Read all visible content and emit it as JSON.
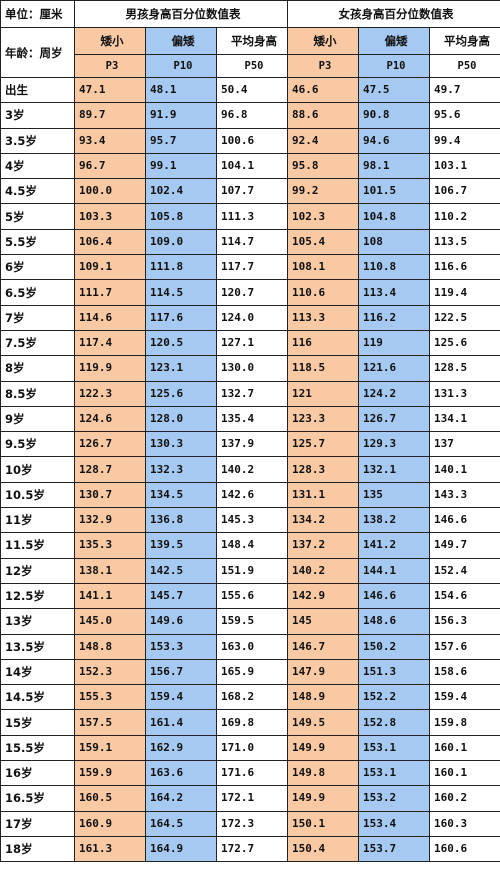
{
  "header": {
    "unit_label": "单位：厘米",
    "age_label": "年龄：周岁",
    "boys_title": "男孩身高百分位数值表",
    "girls_title": "女孩身高百分位数值表",
    "col_short": "矮小",
    "col_low": "偏矮",
    "col_avg": "平均身高",
    "p3": "P3",
    "p10": "P10",
    "p50": "P50"
  },
  "rows": [
    {
      "age": "出生",
      "b": [
        "47.1",
        "48.1",
        "50.4"
      ],
      "g": [
        "46.6",
        "47.5",
        "49.7"
      ]
    },
    {
      "age": "3岁",
      "b": [
        "89.7",
        "91.9",
        "96.8"
      ],
      "g": [
        "88.6",
        "90.8",
        "95.6"
      ]
    },
    {
      "age": "3.5岁",
      "b": [
        "93.4",
        "95.7",
        "100.6"
      ],
      "g": [
        "92.4",
        "94.6",
        "99.4"
      ]
    },
    {
      "age": "4岁",
      "b": [
        "96.7",
        "99.1",
        "104.1"
      ],
      "g": [
        "95.8",
        "98.1",
        "103.1"
      ]
    },
    {
      "age": "4.5岁",
      "b": [
        "100.0",
        "102.4",
        "107.7"
      ],
      "g": [
        "99.2",
        "101.5",
        "106.7"
      ]
    },
    {
      "age": "5岁",
      "b": [
        "103.3",
        "105.8",
        "111.3"
      ],
      "g": [
        "102.3",
        "104.8",
        "110.2"
      ]
    },
    {
      "age": "5.5岁",
      "b": [
        "106.4",
        "109.0",
        "114.7"
      ],
      "g": [
        "105.4",
        "108",
        "113.5"
      ]
    },
    {
      "age": "6岁",
      "b": [
        "109.1",
        "111.8",
        "117.7"
      ],
      "g": [
        "108.1",
        "110.8",
        "116.6"
      ]
    },
    {
      "age": "6.5岁",
      "b": [
        "111.7",
        "114.5",
        "120.7"
      ],
      "g": [
        "110.6",
        "113.4",
        "119.4"
      ]
    },
    {
      "age": "7岁",
      "b": [
        "114.6",
        "117.6",
        "124.0"
      ],
      "g": [
        "113.3",
        "116.2",
        "122.5"
      ]
    },
    {
      "age": "7.5岁",
      "b": [
        "117.4",
        "120.5",
        "127.1"
      ],
      "g": [
        "116",
        "119",
        "125.6"
      ]
    },
    {
      "age": "8岁",
      "b": [
        "119.9",
        "123.1",
        "130.0"
      ],
      "g": [
        "118.5",
        "121.6",
        "128.5"
      ]
    },
    {
      "age": "8.5岁",
      "b": [
        "122.3",
        "125.6",
        "132.7"
      ],
      "g": [
        "121",
        "124.2",
        "131.3"
      ]
    },
    {
      "age": "9岁",
      "b": [
        "124.6",
        "128.0",
        "135.4"
      ],
      "g": [
        "123.3",
        "126.7",
        "134.1"
      ]
    },
    {
      "age": "9.5岁",
      "b": [
        "126.7",
        "130.3",
        "137.9"
      ],
      "g": [
        "125.7",
        "129.3",
        "137"
      ]
    },
    {
      "age": "10岁",
      "b": [
        "128.7",
        "132.3",
        "140.2"
      ],
      "g": [
        "128.3",
        "132.1",
        "140.1"
      ]
    },
    {
      "age": "10.5岁",
      "b": [
        "130.7",
        "134.5",
        "142.6"
      ],
      "g": [
        "131.1",
        "135",
        "143.3"
      ]
    },
    {
      "age": "11岁",
      "b": [
        "132.9",
        "136.8",
        "145.3"
      ],
      "g": [
        "134.2",
        "138.2",
        "146.6"
      ]
    },
    {
      "age": "11.5岁",
      "b": [
        "135.3",
        "139.5",
        "148.4"
      ],
      "g": [
        "137.2",
        "141.2",
        "149.7"
      ]
    },
    {
      "age": "12岁",
      "b": [
        "138.1",
        "142.5",
        "151.9"
      ],
      "g": [
        "140.2",
        "144.1",
        "152.4"
      ]
    },
    {
      "age": "12.5岁",
      "b": [
        "141.1",
        "145.7",
        "155.6"
      ],
      "g": [
        "142.9",
        "146.6",
        "154.6"
      ]
    },
    {
      "age": "13岁",
      "b": [
        "145.0",
        "149.6",
        "159.5"
      ],
      "g": [
        "145",
        "148.6",
        "156.3"
      ]
    },
    {
      "age": "13.5岁",
      "b": [
        "148.8",
        "153.3",
        "163.0"
      ],
      "g": [
        "146.7",
        "150.2",
        "157.6"
      ]
    },
    {
      "age": "14岁",
      "b": [
        "152.3",
        "156.7",
        "165.9"
      ],
      "g": [
        "147.9",
        "151.3",
        "158.6"
      ]
    },
    {
      "age": "14.5岁",
      "b": [
        "155.3",
        "159.4",
        "168.2"
      ],
      "g": [
        "148.9",
        "152.2",
        "159.4"
      ]
    },
    {
      "age": "15岁",
      "b": [
        "157.5",
        "161.4",
        "169.8"
      ],
      "g": [
        "149.5",
        "152.8",
        "159.8"
      ]
    },
    {
      "age": "15.5岁",
      "b": [
        "159.1",
        "162.9",
        "171.0"
      ],
      "g": [
        "149.9",
        "153.1",
        "160.1"
      ]
    },
    {
      "age": "16岁",
      "b": [
        "159.9",
        "163.6",
        "171.6"
      ],
      "g": [
        "149.8",
        "153.1",
        "160.1"
      ]
    },
    {
      "age": "16.5岁",
      "b": [
        "160.5",
        "164.2",
        "172.1"
      ],
      "g": [
        "149.9",
        "153.2",
        "160.2"
      ]
    },
    {
      "age": "17岁",
      "b": [
        "160.9",
        "164.5",
        "172.3"
      ],
      "g": [
        "150.1",
        "153.4",
        "160.3"
      ]
    },
    {
      "age": "18岁",
      "b": [
        "161.3",
        "164.9",
        "172.7"
      ],
      "g": [
        "150.4",
        "153.7",
        "160.6"
      ]
    }
  ],
  "colors": {
    "p3": "#f8c9a3",
    "p10": "#a6c9f1",
    "p50": "#ffffff"
  }
}
